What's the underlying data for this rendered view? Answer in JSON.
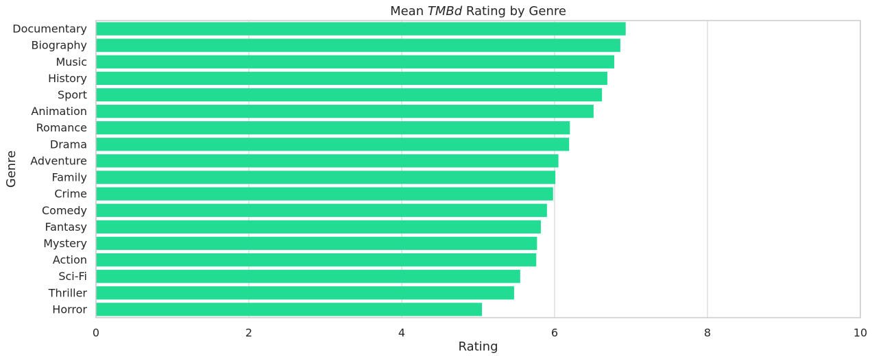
{
  "chart_data": {
    "type": "bar",
    "orientation": "horizontal",
    "title": {
      "prefix": "Mean ",
      "emphasis": "TMBd",
      "suffix": " Rating by Genre"
    },
    "xlabel": "Rating",
    "ylabel": "Genre",
    "xlim": [
      0,
      10
    ],
    "xticks": [
      0,
      2,
      4,
      6,
      8,
      10
    ],
    "grid": "vertical",
    "bar_color": "#22dc93",
    "categories": [
      "Documentary",
      "Biography",
      "Music",
      "History",
      "Sport",
      "Animation",
      "Romance",
      "Drama",
      "Adventure",
      "Family",
      "Crime",
      "Comedy",
      "Fantasy",
      "Mystery",
      "Action",
      "Sci-Fi",
      "Thriller",
      "Horror"
    ],
    "values": [
      6.93,
      6.86,
      6.78,
      6.69,
      6.62,
      6.51,
      6.2,
      6.19,
      6.05,
      6.01,
      5.98,
      5.9,
      5.82,
      5.77,
      5.76,
      5.55,
      5.47,
      5.05
    ]
  }
}
